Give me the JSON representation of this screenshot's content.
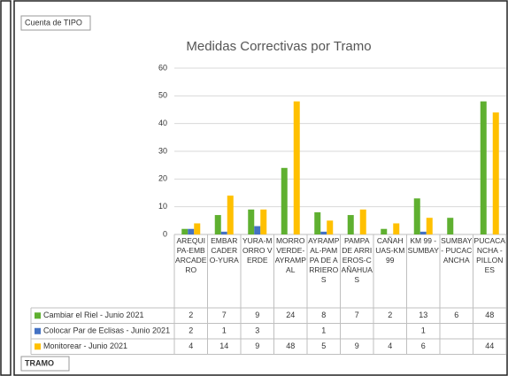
{
  "chart_data": {
    "type": "bar",
    "title": "Medidas Correctivas por Tramo",
    "field_button": "Cuenta de TIPO",
    "axis_button": "TRAMO",
    "categories": [
      "AREQUIPA-EMBARCADERO",
      "EMBARCADERO-YURA",
      "YURA-MORRO VERDE",
      "MORRO VERDE-AYRAMPAL",
      "AYRAMPAL-PAMPA DE ARRIEROS",
      "PAMPA DE ARRIEROS-CAÑAHUAS",
      "CAÑAHUAS-KM 99",
      "KM 99 - SUMBAY",
      "SUMBAY - PUCACANCHA",
      "PUCACANCHA - PILLONES"
    ],
    "series": [
      {
        "name": "Cambiar el Riel - Junio 2021",
        "color": "#5fb030",
        "values": [
          2,
          7,
          9,
          24,
          8,
          7,
          2,
          13,
          6,
          48
        ]
      },
      {
        "name": "Colocar Par de Eclisas - Junio 2021",
        "color": "#4472c4",
        "values": [
          2,
          1,
          3,
          null,
          1,
          null,
          null,
          1,
          null,
          null
        ]
      },
      {
        "name": "Monitorear - Junio 2021",
        "color": "#ffc000",
        "values": [
          4,
          14,
          9,
          48,
          5,
          9,
          4,
          6,
          null,
          44
        ]
      }
    ],
    "ylim": [
      0,
      60
    ],
    "yticks": [
      0,
      10,
      20,
      30,
      40,
      50,
      60
    ],
    "grid": true
  }
}
